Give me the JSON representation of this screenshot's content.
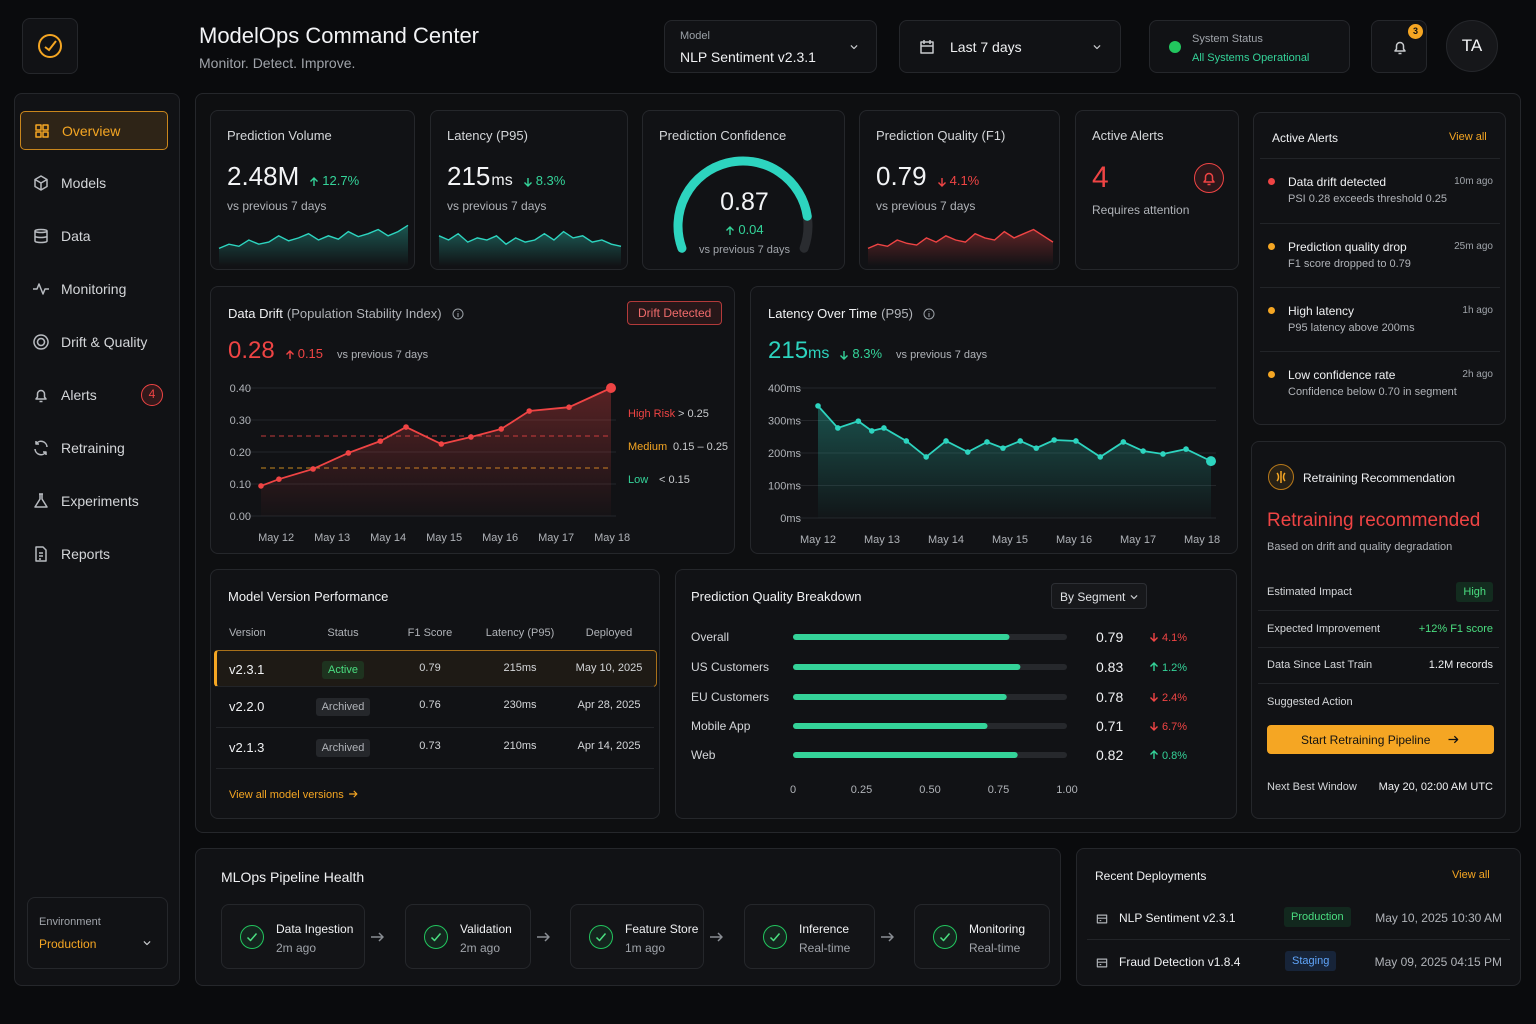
{
  "header": {
    "title": "ModelOps Command Center",
    "subtitle": "Monitor. Detect. Improve.",
    "model_label": "Model",
    "model": "NLP Sentiment v2.3.1",
    "date_range": "Last 7 days",
    "status_label": "System Status",
    "status": "All Systems Operational",
    "notifications": 3,
    "user": "TA"
  },
  "nav": {
    "items": [
      {
        "label": "Overview",
        "active": true
      },
      {
        "label": "Models"
      },
      {
        "label": "Data"
      },
      {
        "label": "Monitoring"
      },
      {
        "label": "Drift & Quality"
      },
      {
        "label": "Alerts",
        "badge": 4
      },
      {
        "label": "Retraining"
      },
      {
        "label": "Experiments"
      },
      {
        "label": "Reports"
      }
    ],
    "environment_label": "Environment",
    "environment": "Production"
  },
  "kpis": [
    {
      "title": "Prediction Volume",
      "value": "2.48M",
      "change": "12.7%",
      "direction": "up",
      "change_color": "#34d399",
      "note": "vs previous 7 days",
      "sparkline": {
        "values": [
          3,
          4,
          3.5,
          5,
          4,
          4.5,
          6,
          4.8,
          5.5,
          6.5,
          5,
          6,
          5.2,
          7,
          5.8,
          6.5,
          7.5,
          6,
          7,
          8.5
        ],
        "ylim": [
          0,
          10
        ],
        "color": "#2dd4bf"
      }
    },
    {
      "title": "Latency (P95)",
      "value": "215",
      "unit": "ms",
      "change": "8.3%",
      "direction": "down",
      "change_color": "#34d399",
      "note": "vs previous 7 days",
      "sparkline": {
        "values": [
          6,
          5,
          6.5,
          4.5,
          5.5,
          5,
          6,
          4,
          5.5,
          4.5,
          5,
          6.5,
          5,
          7,
          5.5,
          6,
          4.5,
          5,
          4,
          3.5
        ],
        "ylim": [
          0,
          10
        ],
        "color": "#2dd4bf"
      }
    },
    {
      "title": "Prediction Confidence",
      "value": 0.87,
      "change": "0.04",
      "direction": "up",
      "change_color": "#34d399",
      "note": "vs previous 7 days",
      "gauge_lim": [
        0,
        1
      ],
      "color": "#2dd4bf"
    },
    {
      "title": "Prediction Quality (F1)",
      "value": 0.79,
      "change": "4.1%",
      "direction": "down",
      "change_color": "#ef4444",
      "note": "vs previous 7 days",
      "sparkline": {
        "values": [
          3,
          4,
          3.5,
          5,
          4.2,
          3.8,
          5.5,
          4.5,
          6,
          5,
          4.5,
          6.5,
          5.5,
          5,
          7,
          5.5,
          6.5,
          7.5,
          6,
          4.5
        ],
        "ylim": [
          0,
          10
        ],
        "color": "#ef4444"
      }
    },
    {
      "title": "Active Alerts",
      "value": 4,
      "note": "Requires attention"
    }
  ],
  "drift_chart": {
    "type": "line",
    "title": "Data Drift",
    "subtitle": "(Population Stability Index)",
    "badge": "Drift Detected",
    "value": 0.28,
    "change": "0.15",
    "direction": "up",
    "note": "vs previous 7 days",
    "color": "#ef4444",
    "x": [
      11.73,
      12.05,
      12.66,
      13.29,
      13.86,
      14.32,
      14.95,
      15.48,
      16.02,
      16.52,
      17.23,
      17.98
    ],
    "values": [
      0.094,
      0.115,
      0.147,
      0.197,
      0.234,
      0.278,
      0.225,
      0.247,
      0.272,
      0.328,
      0.34,
      0.4
    ],
    "xlim": [
      11.73,
      17.98
    ],
    "xticks": [
      {
        "value": 12,
        "label": "May 12"
      },
      {
        "value": 13,
        "label": "May 13"
      },
      {
        "value": 14,
        "label": "May 14"
      },
      {
        "value": 15,
        "label": "May 15"
      },
      {
        "value": 16,
        "label": "May 16"
      },
      {
        "value": 17,
        "label": "May 17"
      },
      {
        "value": 18,
        "label": "May 18"
      }
    ],
    "ylim": [
      0,
      0.4
    ],
    "yticks": [
      {
        "value": 0,
        "label": "0.00"
      },
      {
        "value": 0.1,
        "label": "0.10"
      },
      {
        "value": 0.2,
        "label": "0.20"
      },
      {
        "value": 0.3,
        "label": "0.30"
      },
      {
        "value": 0.4,
        "label": "0.40"
      }
    ],
    "thresholds": [
      {
        "name": "High Risk",
        "range": "> 0.25",
        "value": 0.25,
        "color": "#ef4444"
      },
      {
        "name": "Medium",
        "range": "0.15 – 0.25",
        "value": 0.15,
        "color": "#f5a623"
      },
      {
        "name": "Low",
        "range": "< 0.15",
        "color": "#34d399"
      }
    ]
  },
  "latency_chart": {
    "type": "line",
    "title": "Latency Over Time",
    "subtitle": "(P95)",
    "value": "215",
    "unit": "ms",
    "change": "8.3%",
    "direction": "down",
    "note": "vs previous 7 days",
    "color": "#2dd4bf",
    "x": [
      12.0,
      12.31,
      12.63,
      12.84,
      13.03,
      13.38,
      13.69,
      14.0,
      14.34,
      14.64,
      14.89,
      15.16,
      15.41,
      15.69,
      16.03,
      16.41,
      16.77,
      17.08,
      17.39,
      17.75,
      18.14
    ],
    "values": [
      345,
      277,
      298,
      268,
      277,
      237,
      188,
      237,
      203,
      234,
      215,
      237,
      215,
      240,
      237,
      188,
      234,
      206,
      197,
      212,
      175
    ],
    "xlim": [
      12,
      18.14
    ],
    "xticks": [
      {
        "value": 12,
        "label": "May 12"
      },
      {
        "value": 13,
        "label": "May 13"
      },
      {
        "value": 14,
        "label": "May 14"
      },
      {
        "value": 15,
        "label": "May 15"
      },
      {
        "value": 16,
        "label": "May 16"
      },
      {
        "value": 17,
        "label": "May 17"
      },
      {
        "value": 18,
        "label": "May 18"
      }
    ],
    "ylim": [
      0,
      400
    ],
    "yticks": [
      {
        "value": 0,
        "label": "0ms"
      },
      {
        "value": 100,
        "label": "100ms"
      },
      {
        "value": 200,
        "label": "200ms"
      },
      {
        "value": 300,
        "label": "300ms"
      },
      {
        "value": 400,
        "label": "400ms"
      }
    ]
  },
  "versions": {
    "title": "Model Version Performance",
    "columns": [
      "Version",
      "Status",
      "F1 Score",
      "Latency (P95)",
      "Deployed"
    ],
    "rows": [
      [
        "v2.3.1",
        "Active",
        "0.79",
        "215ms",
        "May 10, 2025"
      ],
      [
        "v2.2.0",
        "Archived",
        "0.76",
        "230ms",
        "Apr 28, 2025"
      ],
      [
        "v2.1.3",
        "Archived",
        "0.73",
        "210ms",
        "Apr 14, 2025"
      ]
    ],
    "link": "View all model versions"
  },
  "quality_breakdown": {
    "type": "hbar",
    "title": "Prediction Quality Breakdown",
    "filter": "By Segment",
    "categories": [
      "Overall",
      "US Customers",
      "EU Customers",
      "Mobile App",
      "Web"
    ],
    "values": [
      0.79,
      0.83,
      0.78,
      0.71,
      0.82
    ],
    "changes": [
      "4.1%",
      "1.2%",
      "2.4%",
      "6.7%",
      "0.8%"
    ],
    "directions": [
      "down",
      "up",
      "down",
      "down",
      "up"
    ],
    "color": "#34d399",
    "xlim": [
      0,
      1
    ],
    "xticks": [
      0,
      0.25,
      {
        "value": 0.5,
        "label": "0.50"
      },
      0.75,
      {
        "value": 1,
        "label": "1.00"
      }
    ]
  },
  "alerts": {
    "title": "Active Alerts",
    "link": "View all",
    "items": [
      {
        "title": "Data drift detected",
        "detail": "PSI 0.28 exceeds threshold 0.25",
        "time": "10m ago",
        "color": "#ef4444"
      },
      {
        "title": "Prediction quality drop",
        "detail": "F1 score dropped to 0.79",
        "time": "25m ago",
        "color": "#f5a623"
      },
      {
        "title": "High latency",
        "detail": "P95 latency above 200ms",
        "time": "1h ago",
        "color": "#f5a623"
      },
      {
        "title": "Low confidence rate",
        "detail": "Confidence below 0.70 in segment",
        "time": "2h ago",
        "color": "#f5a623"
      }
    ]
  },
  "retraining": {
    "title": "Retraining Recommendation",
    "headline": "Retraining recommended",
    "subtitle": "Based on drift and quality degradation",
    "rows": [
      {
        "label": "Estimated Impact",
        "value": "High"
      },
      {
        "label": "Expected Improvement",
        "value": "+12% F1 score"
      },
      {
        "label": "Data Since Last Train",
        "value": "1.2M records"
      }
    ],
    "action_label": "Suggested Action",
    "button": "Start Retraining Pipeline",
    "window_label": "Next Best Window",
    "window": "May 20, 02:00 AM UTC"
  },
  "pipeline": {
    "title": "MLOps Pipeline Health",
    "stages": [
      {
        "name": "Data Ingestion",
        "status": "2m ago"
      },
      {
        "name": "Validation",
        "status": "2m ago"
      },
      {
        "name": "Feature Store",
        "status": "1m ago"
      },
      {
        "name": "Inference",
        "status": "Real-time"
      },
      {
        "name": "Monitoring",
        "status": "Real-time"
      }
    ]
  },
  "deployments": {
    "title": "Recent Deployments",
    "link": "View all",
    "rows": [
      {
        "name": "NLP Sentiment v2.3.1",
        "env": "Production",
        "time": "May 10, 2025 10:30 AM"
      },
      {
        "name": "Fraud Detection v1.8.4",
        "env": "Staging",
        "time": "May 09, 2025 04:15 PM"
      }
    ]
  }
}
